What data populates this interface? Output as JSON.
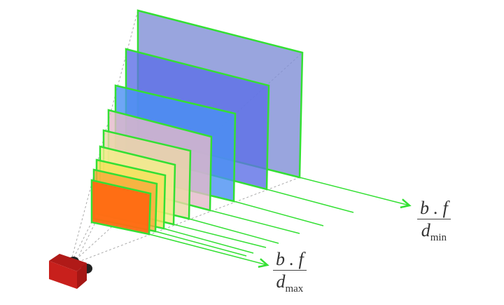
{
  "formula_min": {
    "numerator": "b . f",
    "denominator": "d",
    "subscript": "min"
  },
  "formula_max": {
    "numerator": "b . f",
    "denominator": "d",
    "subscript": "max"
  },
  "colors": {
    "edge": "#33e033",
    "planes": [
      "#7f8fd6",
      "#5c6fe6",
      "#4a90f2",
      "#e3b9c9",
      "#ecd7a8",
      "#f4ee8a",
      "#f5e05a",
      "#f7a93a",
      "#ff6a12"
    ],
    "camera": "#c8201c"
  }
}
